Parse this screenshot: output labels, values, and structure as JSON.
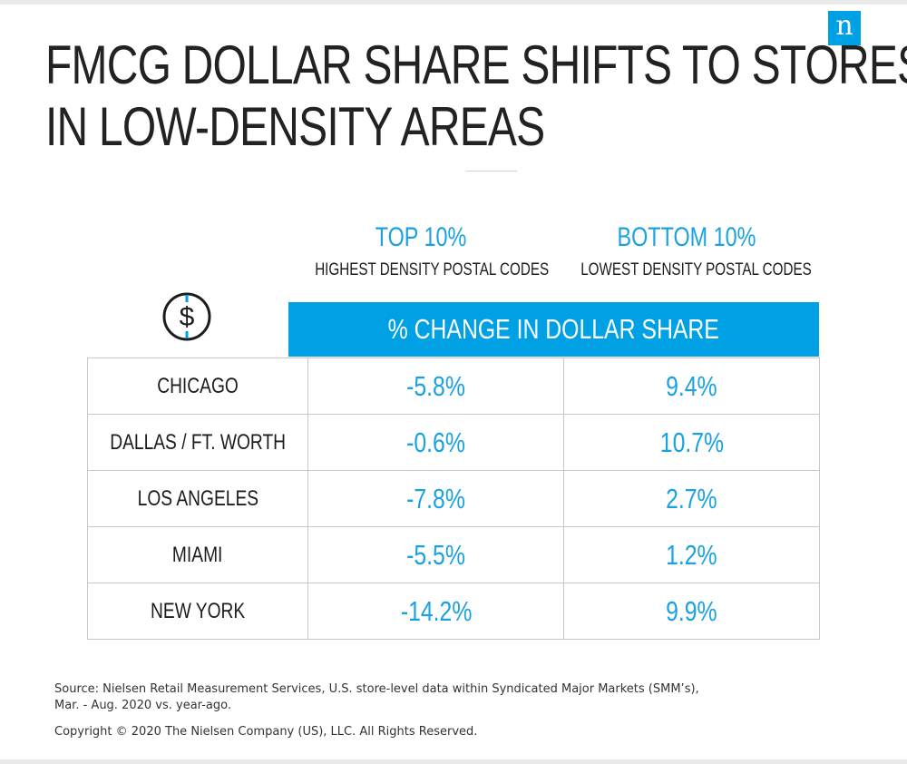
{
  "brand": {
    "logo_text": "n",
    "accent_color": "#00a1e4"
  },
  "title": {
    "line1": "FMCG DOLLAR SHARE SHIFTS TO STORES",
    "line2": "IN LOW-DENSITY AREAS"
  },
  "icon": {
    "name": "dollar-circle-icon",
    "glyph": "$"
  },
  "chart_data": {
    "type": "table",
    "column_headers": [
      {
        "label": "TOP 10%",
        "sublabel": "HIGHEST DENSITY POSTAL CODES"
      },
      {
        "label": "BOTTOM 10%",
        "sublabel": "LOWEST DENSITY POSTAL CODES"
      }
    ],
    "measure_header": "% CHANGE IN DOLLAR SHARE",
    "rows": [
      {
        "city": "CHICAGO",
        "top10": "-5.8%",
        "bottom10": "9.4%"
      },
      {
        "city": "DALLAS / FT. WORTH",
        "top10": "-0.6%",
        "bottom10": "10.7%"
      },
      {
        "city": "LOS ANGELES",
        "top10": "-7.8%",
        "bottom10": "2.7%"
      },
      {
        "city": "MIAMI",
        "top10": "-5.5%",
        "bottom10": "1.2%"
      },
      {
        "city": "NEW YORK",
        "top10": "-14.2%",
        "bottom10": "9.9%"
      }
    ]
  },
  "footer": {
    "source_line1": "Source: Nielsen Retail Measurement Services, U.S. store-level data within Syndicated Major Markets (SMM’s),",
    "source_line2": "Mar. - Aug. 2020 vs. year-ago.",
    "copyright": "Copyright © 2020 The Nielsen Company (US), LLC. All Rights Reserved."
  }
}
